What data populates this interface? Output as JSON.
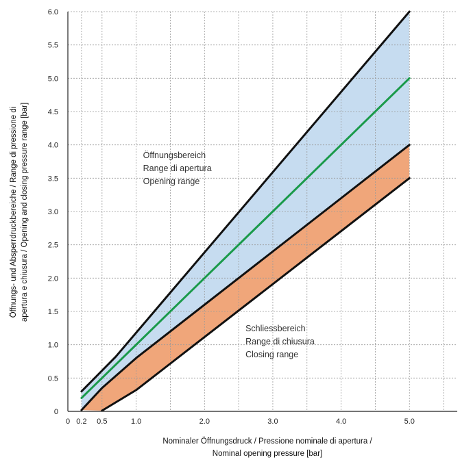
{
  "chart_data": {
    "type": "area",
    "ylabel_lines": [
      "Öffnungs- und Absperrdruckbereiche / Range di pressione di",
      "apertura e chiusura / Opening and closing pressure range [bar]"
    ],
    "xlabel_lines": [
      "Nominaler Öffnungsdruck / Pressione nominale di apertura /",
      "Nominal opening pressure [bar]"
    ],
    "xlim": [
      0,
      5.7
    ],
    "ylim": [
      0,
      6.0
    ],
    "x_ticks": [
      {
        "value": 0,
        "label": "0"
      },
      {
        "value": 0.2,
        "label": "0.2"
      },
      {
        "value": 0.5,
        "label": "0.5"
      },
      {
        "value": 1.0,
        "label": "1.0"
      },
      {
        "value": 2.0,
        "label": "2.0"
      },
      {
        "value": 3.0,
        "label": "3.0"
      },
      {
        "value": 4.0,
        "label": "4.0"
      },
      {
        "value": 5.0,
        "label": "5.0"
      }
    ],
    "y_ticks": [
      {
        "value": 0,
        "label": "0"
      },
      {
        "value": 0.5,
        "label": "0.5"
      },
      {
        "value": 1.0,
        "label": "1.0"
      },
      {
        "value": 1.5,
        "label": "1.5"
      },
      {
        "value": 2.0,
        "label": "2.0"
      },
      {
        "value": 2.5,
        "label": "2.5"
      },
      {
        "value": 3.0,
        "label": "3.0"
      },
      {
        "value": 3.5,
        "label": "3.5"
      },
      {
        "value": 4.0,
        "label": "4.0"
      },
      {
        "value": 4.5,
        "label": "4.5"
      },
      {
        "value": 5.0,
        "label": "5.0"
      },
      {
        "value": 5.5,
        "label": "5.5"
      },
      {
        "value": 6.0,
        "label": "6.0"
      }
    ],
    "x_gridlines": [
      0,
      0.2,
      0.5,
      1.0,
      1.5,
      2.0,
      2.5,
      3.0,
      3.5,
      4.0,
      4.5,
      5.0,
      5.5
    ],
    "y_gridlines": [
      0.5,
      1.0,
      1.5,
      2.0,
      2.5,
      3.0,
      3.5,
      4.0,
      4.5,
      5.0,
      5.5,
      6.0
    ],
    "grid": true,
    "series": [
      {
        "key": "opening_upper",
        "color": "#111111",
        "x": [
          0.2,
          0.7,
          5.0
        ],
        "y": [
          0.3,
          0.82,
          6.0
        ]
      },
      {
        "key": "nominal",
        "color": "#1a9a4a",
        "x": [
          0.2,
          5.0
        ],
        "y": [
          0.2,
          5.0
        ]
      },
      {
        "key": "closing_upper",
        "color": "#111111",
        "x": [
          0.2,
          0.5,
          1.0,
          5.0
        ],
        "y": [
          0.02,
          0.35,
          0.8,
          4.0
        ]
      },
      {
        "key": "closing_lower",
        "color": "#111111",
        "x": [
          0.5,
          1.0,
          5.0
        ],
        "y": [
          0.01,
          0.32,
          3.5
        ]
      }
    ],
    "regions": [
      {
        "name": "opening_range",
        "color": "#c6dcf0",
        "upper": "opening_upper",
        "lower": "closing_upper"
      },
      {
        "name": "closing_range",
        "color": "#f0a67a",
        "upper": "closing_upper",
        "lower": "closing_lower"
      }
    ],
    "annotations": [
      {
        "key": "opening",
        "x": 1.1,
        "y": 3.8,
        "lines": [
          "Öffnungsbereich",
          "Range di apertura",
          "Opening range"
        ]
      },
      {
        "key": "closing",
        "x": 2.6,
        "y": 1.2,
        "lines": [
          "Schliessbereich",
          "Range di chiusura",
          "Closing range"
        ]
      }
    ]
  }
}
